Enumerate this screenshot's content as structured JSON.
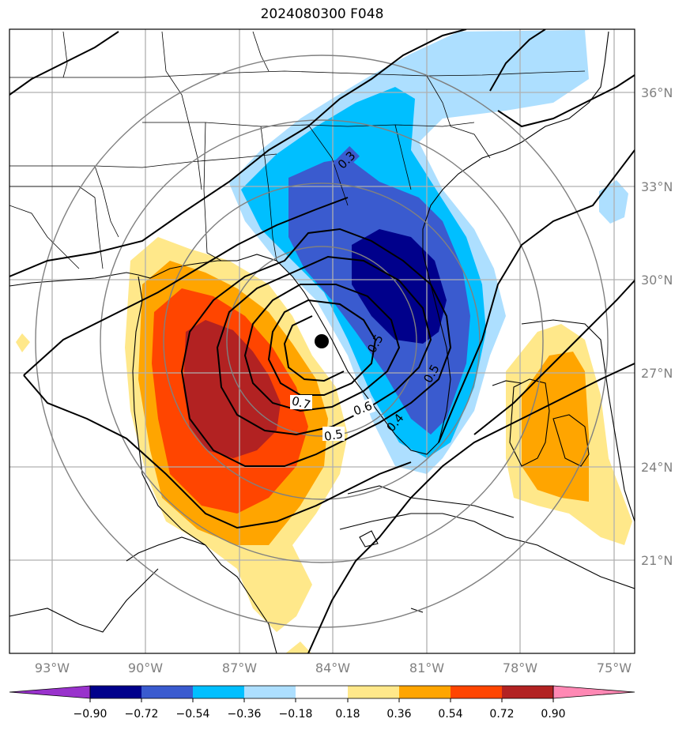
{
  "title": "2024080300 F048",
  "colors": {
    "fills": [
      "#9932cc",
      "#00008b",
      "#3a5bcf",
      "#00bfff",
      "#addfff",
      "#ffffff",
      "#ffe88a",
      "#ffa500",
      "#ff4500",
      "#b22222",
      "#ff88b4"
    ]
  },
  "map": {
    "lon_labels": [
      "93°W",
      "90°W",
      "87°W",
      "84°W",
      "81°W",
      "78°W",
      "75°W"
    ],
    "lat_labels": [
      "36°N",
      "33°N",
      "30°N",
      "27°N",
      "24°N",
      "21°N"
    ],
    "contour_labels": [
      "0.3",
      "0.7",
      "0.6",
      "0.5",
      "0.4",
      "0.5",
      "0.5"
    ],
    "center_marker": "storm-center-dot"
  },
  "colorbar": {
    "ticks": [
      "−0.90",
      "−0.72",
      "−0.54",
      "−0.36",
      "−0.18",
      "0.18",
      "0.36",
      "0.54",
      "0.72",
      "0.90"
    ]
  }
}
